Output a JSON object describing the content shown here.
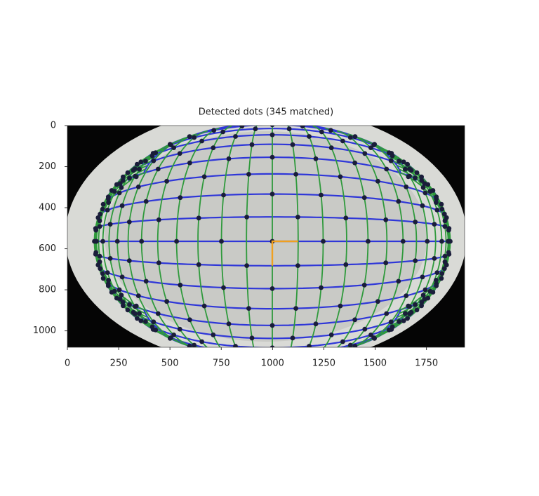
{
  "chart_data": {
    "type": "image",
    "title": "Detected dots (345 matched)",
    "xlim": [
      0,
      1936
    ],
    "ylim": [
      1080,
      0
    ],
    "xticks": [
      0,
      250,
      500,
      750,
      1000,
      1250,
      1500,
      1750
    ],
    "yticks": [
      0,
      200,
      400,
      600,
      800,
      1000
    ]
  }
}
